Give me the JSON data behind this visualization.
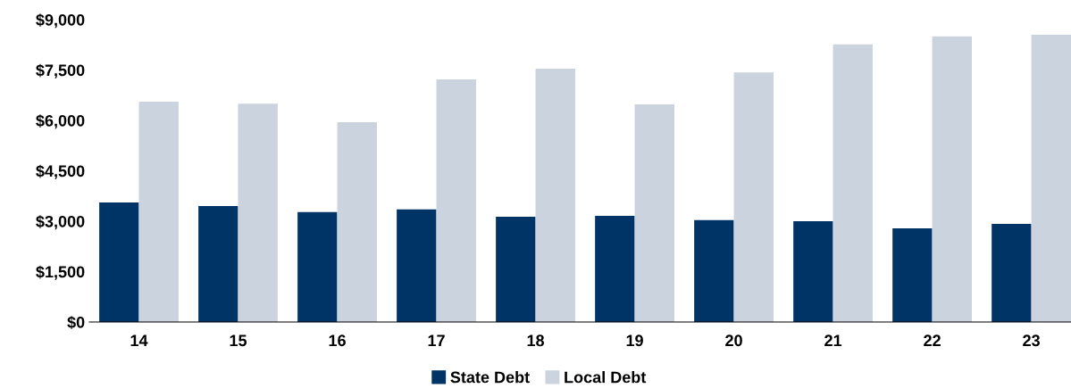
{
  "chart_data": {
    "type": "bar",
    "categories": [
      "14",
      "15",
      "16",
      "17",
      "18",
      "19",
      "20",
      "21",
      "22",
      "23"
    ],
    "series": [
      {
        "name": "State Debt",
        "color": "#003366",
        "values": [
          3560,
          3450,
          3270,
          3350,
          3130,
          3160,
          3030,
          3000,
          2790,
          2920
        ]
      },
      {
        "name": "Local Debt",
        "color": "#cbd3de",
        "values": [
          6560,
          6500,
          5950,
          7220,
          7540,
          6480,
          7430,
          8260,
          8500,
          8550
        ]
      }
    ],
    "ylim": [
      0,
      9000
    ],
    "yticks": [
      {
        "value": 0,
        "label": "$0"
      },
      {
        "value": 1500,
        "label": "$1,500"
      },
      {
        "value": 3000,
        "label": "$3,000"
      },
      {
        "value": 4500,
        "label": "$4,500"
      },
      {
        "value": 6000,
        "label": "$6,000"
      },
      {
        "value": 7500,
        "label": "$7,500"
      },
      {
        "value": 9000,
        "label": "$9,000"
      }
    ],
    "grid": false,
    "legend": "bottom"
  }
}
